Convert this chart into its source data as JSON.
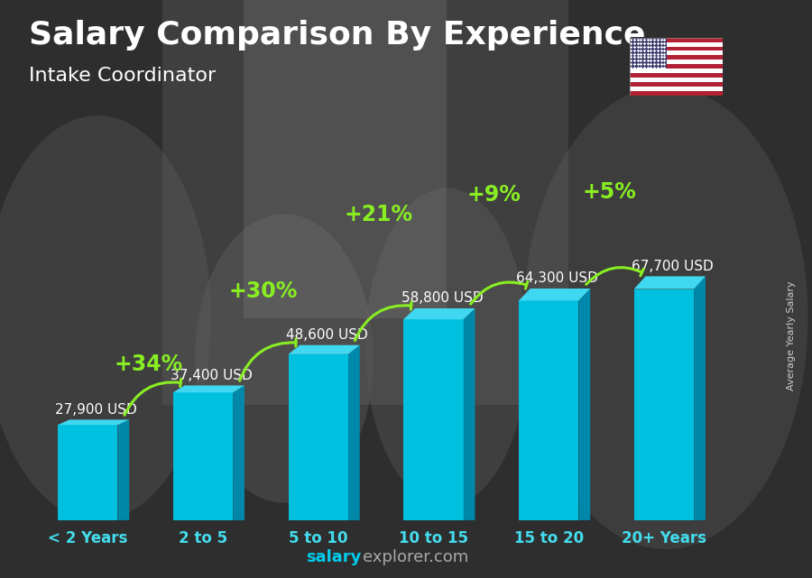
{
  "title": "Salary Comparison By Experience",
  "subtitle": "Intake Coordinator",
  "categories": [
    "< 2 Years",
    "2 to 5",
    "5 to 10",
    "10 to 15",
    "15 to 20",
    "20+ Years"
  ],
  "values": [
    27900,
    37400,
    48600,
    58800,
    64300,
    67700
  ],
  "labels": [
    "27,900 USD",
    "37,400 USD",
    "48,600 USD",
    "58,800 USD",
    "64,300 USD",
    "67,700 USD"
  ],
  "pct_changes": [
    "+34%",
    "+30%",
    "+21%",
    "+9%",
    "+5%"
  ],
  "bar_front_color": "#00C0E0",
  "bar_top_color": "#40D8F0",
  "bar_side_color": "#0088AA",
  "bg_color": "#3a3a3a",
  "text_color": "#ffffff",
  "pct_color": "#88EE22",
  "cat_color": "#44DDEE",
  "ylabel": "Average Yearly Salary",
  "footer_salary": "salary",
  "footer_rest": "explorer.com",
  "footer_salary_color": "#00CCEE",
  "footer_rest_color": "#aaaaaa",
  "title_fontsize": 26,
  "subtitle_fontsize": 16,
  "category_fontsize": 12,
  "label_fontsize": 11,
  "pct_fontsize": 17,
  "arc_heights": [
    1.22,
    1.38,
    1.52,
    1.48,
    1.42
  ]
}
